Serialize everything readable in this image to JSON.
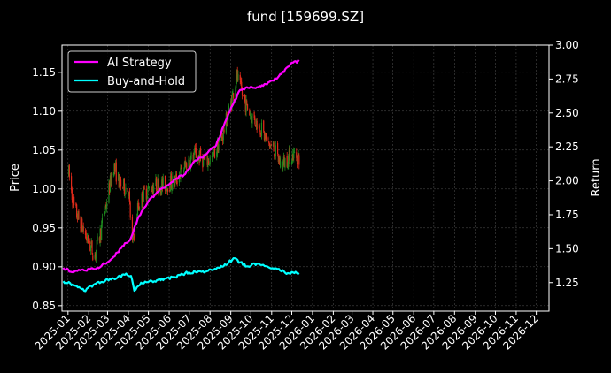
{
  "chart_data": {
    "type": "line",
    "title": "fund [159699.SZ]",
    "ylabel": "Price",
    "y2label": "Return",
    "grid": true,
    "legend_position": "top-left",
    "x_ticks": [
      "2025-01",
      "2025-02",
      "2025-03",
      "2025-04",
      "2025-05",
      "2025-06",
      "2025-07",
      "2025-08",
      "2025-09",
      "2025-10",
      "2025-11",
      "2025-12",
      "2026-01",
      "2026-02",
      "2026-03",
      "2026-04",
      "2026-05",
      "2026-06",
      "2026-07",
      "2026-08",
      "2026-09",
      "2026-10",
      "2026-11",
      "2026-12"
    ],
    "ylim": [
      0.843,
      1.185
    ],
    "y_ticks": [
      0.85,
      0.9,
      0.95,
      1.0,
      1.05,
      1.1,
      1.15
    ],
    "y2lim": [
      1.04,
      3.0
    ],
    "y2_ticks": [
      1.25,
      1.5,
      1.75,
      2.0,
      2.25,
      2.5,
      2.75,
      3.0
    ],
    "x_range": [
      "2024-12-23",
      "2026-12-20"
    ],
    "candles": {
      "up_color": "#1e8a1e",
      "down_color": "#e02a1a",
      "anchors": [
        [
          "2025-01-02",
          1.02
        ],
        [
          "2025-01-10",
          0.975
        ],
        [
          "2025-01-20",
          0.955
        ],
        [
          "2025-02-01",
          0.93
        ],
        [
          "2025-02-10",
          0.915
        ],
        [
          "2025-02-20",
          0.95
        ],
        [
          "2025-03-01",
          0.99
        ],
        [
          "2025-03-10",
          1.03
        ],
        [
          "2025-03-20",
          1.005
        ],
        [
          "2025-04-01",
          1.0
        ],
        [
          "2025-04-07",
          0.93
        ],
        [
          "2025-04-15",
          0.975
        ],
        [
          "2025-04-25",
          0.995
        ],
        [
          "2025-05-10",
          1.005
        ],
        [
          "2025-05-25",
          1.005
        ],
        [
          "2025-06-10",
          1.01
        ],
        [
          "2025-06-25",
          1.03
        ],
        [
          "2025-07-10",
          1.045
        ],
        [
          "2025-07-25",
          1.035
        ],
        [
          "2025-08-05",
          1.04
        ],
        [
          "2025-08-20",
          1.07
        ],
        [
          "2025-09-01",
          1.11
        ],
        [
          "2025-09-10",
          1.145
        ],
        [
          "2025-09-20",
          1.115
        ],
        [
          "2025-10-01",
          1.095
        ],
        [
          "2025-10-15",
          1.08
        ],
        [
          "2025-10-25",
          1.06
        ],
        [
          "2025-11-05",
          1.05
        ],
        [
          "2025-11-15",
          1.03
        ],
        [
          "2025-11-25",
          1.04
        ],
        [
          "2025-12-05",
          1.045
        ],
        [
          "2025-12-12",
          1.04
        ]
      ]
    },
    "series": [
      {
        "name": "AI Strategy",
        "color": "#ff00ff",
        "axis": "right",
        "points": [
          [
            "2024-12-25",
            1.36
          ],
          [
            "2025-01-05",
            1.33
          ],
          [
            "2025-01-25",
            1.34
          ],
          [
            "2025-02-10",
            1.35
          ],
          [
            "2025-02-25",
            1.39
          ],
          [
            "2025-03-10",
            1.44
          ],
          [
            "2025-03-25",
            1.52
          ],
          [
            "2025-04-05",
            1.58
          ],
          [
            "2025-04-15",
            1.72
          ],
          [
            "2025-05-01",
            1.85
          ],
          [
            "2025-05-20",
            1.94
          ],
          [
            "2025-06-10",
            2.01
          ],
          [
            "2025-06-25",
            2.05
          ],
          [
            "2025-07-10",
            2.15
          ],
          [
            "2025-07-25",
            2.19
          ],
          [
            "2025-08-10",
            2.26
          ],
          [
            "2025-08-25",
            2.45
          ],
          [
            "2025-09-05",
            2.57
          ],
          [
            "2025-09-15",
            2.67
          ],
          [
            "2025-09-25",
            2.69
          ],
          [
            "2025-10-10",
            2.69
          ],
          [
            "2025-10-25",
            2.71
          ],
          [
            "2025-11-10",
            2.76
          ],
          [
            "2025-11-25",
            2.84
          ],
          [
            "2025-12-05",
            2.88
          ],
          [
            "2025-12-12",
            2.88
          ]
        ]
      },
      {
        "name": "Buy-and-Hold",
        "color": "#00ffff",
        "axis": "right",
        "points": [
          [
            "2024-12-25",
            1.26
          ],
          [
            "2025-01-10",
            1.23
          ],
          [
            "2025-01-25",
            1.19
          ],
          [
            "2025-02-10",
            1.24
          ],
          [
            "2025-02-25",
            1.26
          ],
          [
            "2025-03-10",
            1.28
          ],
          [
            "2025-03-25",
            1.31
          ],
          [
            "2025-04-05",
            1.3
          ],
          [
            "2025-04-10",
            1.19
          ],
          [
            "2025-04-20",
            1.25
          ],
          [
            "2025-05-10",
            1.26
          ],
          [
            "2025-05-25",
            1.28
          ],
          [
            "2025-06-10",
            1.29
          ],
          [
            "2025-06-25",
            1.32
          ],
          [
            "2025-07-10",
            1.33
          ],
          [
            "2025-07-25",
            1.33
          ],
          [
            "2025-08-10",
            1.35
          ],
          [
            "2025-08-25",
            1.38
          ],
          [
            "2025-09-05",
            1.43
          ],
          [
            "2025-09-15",
            1.4
          ],
          [
            "2025-09-25",
            1.37
          ],
          [
            "2025-10-10",
            1.39
          ],
          [
            "2025-10-25",
            1.37
          ],
          [
            "2025-11-10",
            1.35
          ],
          [
            "2025-11-25",
            1.32
          ],
          [
            "2025-12-05",
            1.32
          ],
          [
            "2025-12-12",
            1.32
          ]
        ]
      }
    ]
  }
}
